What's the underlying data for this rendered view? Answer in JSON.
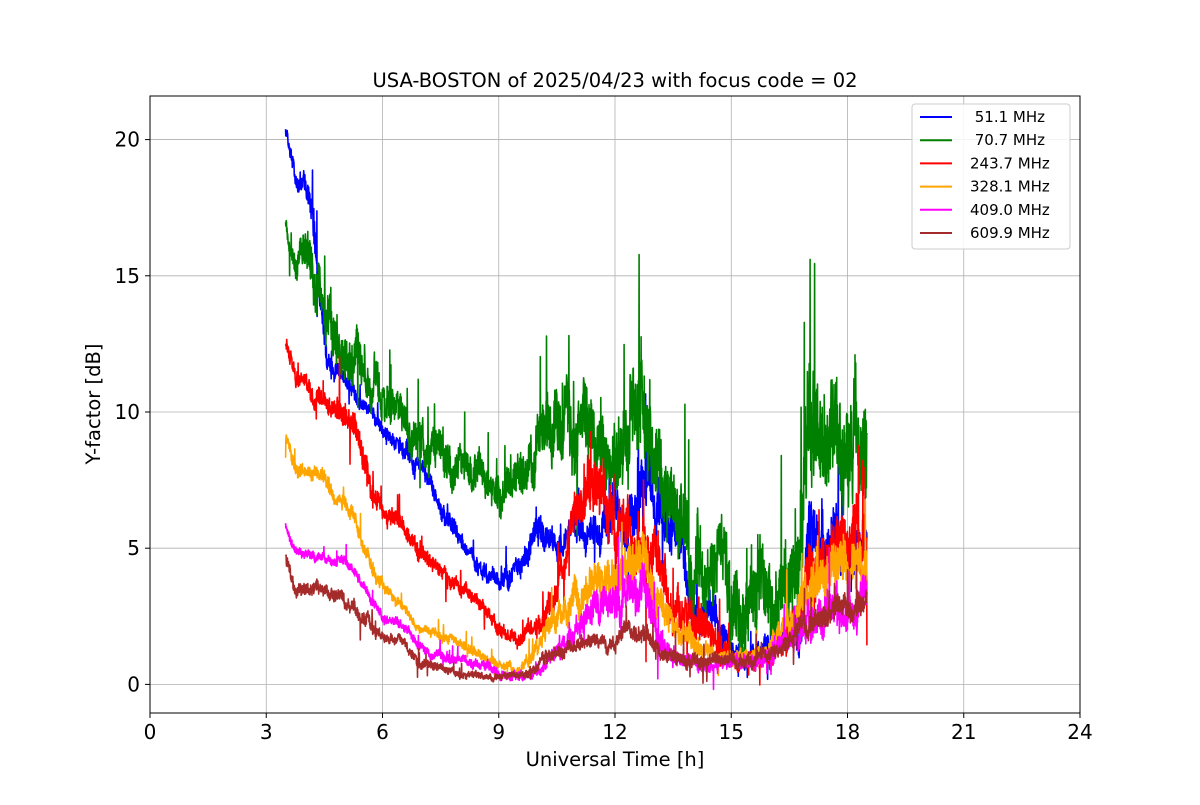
{
  "chart_data": {
    "type": "line",
    "title": "USA-BOSTON of 2025/04/23 with focus code = 02",
    "xlabel": "Universal Time [h]",
    "ylabel": "Y-factor [dB]",
    "xlim": [
      0,
      24
    ],
    "ylim": [
      -1.05,
      21.6
    ],
    "xticks": [
      0,
      3,
      6,
      9,
      12,
      15,
      18,
      21,
      24
    ],
    "yticks": [
      0,
      5,
      10,
      15,
      20
    ],
    "grid": true,
    "legend_position": "top-right",
    "series": [
      {
        "name": " 51.1 MHz",
        "color": "#0000ff",
        "x": [
          3.5,
          3.75,
          4.0,
          4.25,
          4.5,
          4.75,
          5.0,
          5.25,
          5.5,
          5.75,
          6.0,
          6.25,
          6.5,
          6.75,
          7.0,
          7.25,
          7.5,
          7.75,
          8.0,
          8.25,
          8.5,
          8.75,
          9.0,
          9.25,
          9.5,
          9.75,
          10.0,
          10.25,
          10.5,
          10.75,
          11.0,
          11.25,
          11.5,
          11.75,
          12.0,
          12.25,
          12.5,
          12.75,
          13.0,
          13.25,
          13.5,
          13.75,
          14.0,
          14.25,
          14.5,
          14.75,
          15.0,
          15.25,
          15.5,
          15.75,
          16.0,
          16.25,
          16.5,
          16.75,
          17.0,
          17.25,
          17.5,
          17.75,
          18.0,
          18.25,
          18.5
        ],
        "y": [
          20.3,
          18.6,
          18.3,
          16.5,
          12.5,
          11.5,
          11.2,
          10.8,
          10.3,
          9.9,
          9.3,
          9.0,
          8.8,
          8.2,
          8.0,
          7.4,
          6.3,
          5.9,
          5.4,
          4.8,
          4.4,
          4.0,
          3.9,
          4.0,
          4.2,
          4.8,
          5.5,
          5.2,
          5.0,
          5.4,
          5.8,
          5.5,
          5.8,
          6.0,
          6.2,
          6.0,
          6.3,
          7.8,
          7.5,
          5.8,
          5.2,
          5.0,
          2.8,
          2.5,
          2.3,
          2.0,
          1.2,
          1.1,
          1.0,
          1.2,
          1.3,
          1.5,
          1.8,
          1.4,
          5.5,
          5.2,
          5.4,
          5.5,
          5.0,
          4.8,
          5.0
        ],
        "amp": [
          0.2,
          0.4,
          0.5,
          0.8,
          0.7,
          0.5,
          0.4,
          0.4,
          0.3,
          0.3,
          0.3,
          0.3,
          0.4,
          0.4,
          0.4,
          0.4,
          0.4,
          0.4,
          0.4,
          0.3,
          0.4,
          0.4,
          0.4,
          0.5,
          0.5,
          0.6,
          0.8,
          0.6,
          0.6,
          0.6,
          0.6,
          0.6,
          0.8,
          1.0,
          1.2,
          1.0,
          1.3,
          1.4,
          1.4,
          1.2,
          1.0,
          1.0,
          0.9,
          0.8,
          0.8,
          0.7,
          0.5,
          0.4,
          0.4,
          0.4,
          0.5,
          0.6,
          0.6,
          0.6,
          1.3,
          1.2,
          1.2,
          1.2,
          1.1,
          1.0,
          1.0
        ]
      },
      {
        "name": " 70.7 MHz",
        "color": "#008000",
        "x": [
          3.5,
          3.75,
          4.0,
          4.25,
          4.5,
          4.75,
          5.0,
          5.25,
          5.5,
          5.75,
          6.0,
          6.25,
          6.5,
          6.75,
          7.0,
          7.25,
          7.5,
          7.75,
          8.0,
          8.25,
          8.5,
          8.75,
          9.0,
          9.25,
          9.5,
          9.75,
          10.0,
          10.25,
          10.5,
          10.75,
          11.0,
          11.25,
          11.5,
          11.75,
          12.0,
          12.25,
          12.5,
          12.75,
          13.0,
          13.25,
          13.5,
          13.75,
          14.0,
          14.25,
          14.5,
          14.75,
          15.0,
          15.25,
          15.5,
          15.75,
          16.0,
          16.25,
          16.5,
          16.75,
          17.0,
          17.25,
          17.5,
          17.75,
          18.0,
          18.25,
          18.5
        ],
        "y": [
          16.8,
          15.6,
          16.2,
          14.2,
          13.2,
          12.8,
          12.3,
          12.0,
          11.4,
          11.0,
          10.5,
          10.2,
          9.8,
          9.2,
          8.8,
          8.6,
          8.5,
          8.4,
          8.2,
          7.8,
          7.6,
          7.4,
          7.0,
          6.8,
          7.0,
          7.8,
          8.2,
          9.0,
          9.5,
          9.6,
          9.0,
          9.6,
          9.2,
          8.2,
          8.2,
          8.6,
          10.5,
          10.0,
          7.5,
          6.8,
          6.5,
          6.8,
          4.0,
          4.2,
          4.5,
          5.0,
          3.0,
          2.2,
          3.2,
          4.0,
          3.0,
          3.5,
          4.0,
          5.0,
          9.5,
          8.8,
          9.0,
          9.2,
          8.8,
          8.5,
          8.5
        ],
        "amp": [
          0.3,
          0.6,
          0.9,
          1.2,
          1.2,
          1.2,
          1.0,
          1.0,
          1.0,
          0.9,
          0.9,
          0.8,
          0.9,
          0.9,
          0.9,
          0.9,
          0.9,
          0.9,
          0.9,
          0.8,
          0.9,
          0.8,
          0.8,
          0.8,
          0.9,
          1.1,
          1.3,
          1.5,
          1.6,
          1.6,
          1.5,
          1.5,
          1.4,
          1.6,
          1.8,
          1.8,
          2.2,
          2.0,
          2.0,
          1.8,
          1.8,
          1.8,
          1.8,
          1.7,
          1.7,
          1.6,
          1.8,
          1.6,
          1.8,
          1.8,
          1.8,
          1.8,
          2.0,
          2.2,
          2.6,
          2.6,
          2.4,
          2.4,
          2.3,
          2.3,
          2.3
        ]
      },
      {
        "name": "243.7 MHz",
        "color": "#ff0000",
        "x": [
          3.5,
          3.75,
          4.0,
          4.25,
          4.5,
          4.75,
          5.0,
          5.25,
          5.5,
          5.75,
          6.0,
          6.25,
          6.5,
          6.75,
          7.0,
          7.25,
          7.5,
          7.75,
          8.0,
          8.25,
          8.5,
          8.75,
          9.0,
          9.25,
          9.5,
          9.75,
          10.0,
          10.25,
          10.5,
          10.75,
          11.0,
          11.25,
          11.5,
          11.75,
          12.0,
          12.25,
          12.5,
          12.75,
          13.0,
          13.25,
          13.5,
          13.75,
          14.0,
          14.25,
          14.5,
          14.75,
          15.0,
          15.25,
          15.5,
          15.75,
          16.0,
          16.25,
          16.5,
          16.75,
          17.0,
          17.25,
          17.5,
          17.75,
          18.0,
          18.25,
          18.5
        ],
        "y": [
          12.6,
          11.2,
          11.0,
          10.6,
          10.3,
          10.0,
          9.8,
          9.5,
          8.4,
          7.2,
          6.4,
          6.2,
          6.0,
          5.2,
          4.8,
          4.4,
          4.2,
          3.8,
          3.5,
          3.3,
          3.0,
          2.5,
          2.0,
          1.8,
          1.6,
          2.0,
          2.4,
          2.8,
          3.2,
          4.5,
          6.0,
          7.2,
          8.0,
          6.5,
          5.5,
          5.5,
          4.8,
          4.8,
          4.6,
          3.8,
          2.6,
          2.3,
          2.4,
          2.3,
          1.8,
          1.5,
          0.8,
          0.8,
          0.9,
          0.9,
          1.2,
          1.7,
          2.0,
          2.5,
          4.2,
          4.6,
          4.5,
          4.8,
          5.2,
          5.5,
          5.5
        ],
        "amp": [
          0.3,
          0.4,
          0.4,
          0.4,
          0.5,
          0.5,
          0.6,
          0.6,
          0.6,
          0.5,
          0.4,
          0.4,
          0.4,
          0.4,
          0.4,
          0.4,
          0.3,
          0.3,
          0.3,
          0.3,
          0.3,
          0.3,
          0.3,
          0.3,
          0.3,
          0.4,
          0.5,
          0.6,
          0.7,
          0.8,
          1.0,
          1.2,
          1.4,
          1.3,
          1.2,
          1.2,
          1.2,
          1.2,
          1.2,
          1.0,
          0.8,
          0.8,
          0.8,
          0.8,
          0.7,
          0.6,
          0.4,
          0.4,
          0.4,
          0.4,
          0.6,
          0.7,
          0.8,
          0.9,
          1.2,
          1.2,
          1.2,
          1.2,
          1.3,
          1.3,
          1.2
        ]
      },
      {
        "name": "328.1 MHz",
        "color": "#ffa500",
        "x": [
          3.5,
          3.75,
          4.0,
          4.25,
          4.5,
          4.75,
          5.0,
          5.25,
          5.5,
          5.75,
          6.0,
          6.25,
          6.5,
          6.75,
          7.0,
          7.25,
          7.5,
          7.75,
          8.0,
          8.25,
          8.5,
          8.75,
          9.0,
          9.25,
          9.5,
          9.75,
          10.0,
          10.25,
          10.5,
          10.75,
          11.0,
          11.25,
          11.5,
          11.75,
          12.0,
          12.25,
          12.5,
          12.75,
          13.0,
          13.25,
          13.5,
          13.75,
          14.0,
          14.25,
          14.5,
          14.75,
          15.0,
          15.25,
          15.5,
          15.75,
          16.0,
          16.25,
          16.5,
          16.75,
          17.0,
          17.25,
          17.5,
          17.75,
          18.0,
          18.25,
          18.5
        ],
        "y": [
          9.2,
          8.0,
          7.8,
          7.7,
          7.6,
          7.0,
          6.8,
          6.2,
          5.0,
          4.2,
          3.6,
          3.2,
          3.0,
          2.4,
          2.0,
          1.9,
          1.8,
          1.7,
          1.5,
          1.3,
          1.1,
          0.9,
          0.7,
          0.6,
          0.5,
          0.8,
          1.4,
          2.0,
          2.4,
          2.8,
          3.2,
          3.4,
          3.6,
          3.8,
          4.0,
          4.2,
          4.6,
          4.8,
          3.5,
          2.8,
          2.2,
          1.8,
          1.5,
          1.2,
          1.0,
          0.9,
          1.0,
          1.0,
          1.0,
          1.1,
          1.3,
          1.8,
          2.2,
          2.8,
          3.5,
          3.8,
          4.0,
          4.2,
          4.4,
          4.5,
          4.5
        ],
        "amp": [
          0.3,
          0.3,
          0.3,
          0.3,
          0.3,
          0.3,
          0.3,
          0.3,
          0.3,
          0.3,
          0.3,
          0.2,
          0.2,
          0.2,
          0.2,
          0.2,
          0.2,
          0.2,
          0.2,
          0.2,
          0.2,
          0.2,
          0.2,
          0.2,
          0.2,
          0.3,
          0.4,
          0.5,
          0.5,
          0.6,
          0.7,
          0.7,
          0.8,
          0.8,
          0.9,
          0.9,
          1.0,
          1.0,
          0.9,
          0.7,
          0.6,
          0.5,
          0.5,
          0.4,
          0.4,
          0.3,
          0.3,
          0.3,
          0.3,
          0.3,
          0.4,
          0.5,
          0.6,
          0.7,
          0.9,
          0.9,
          1.0,
          1.0,
          1.0,
          1.0,
          1.0
        ]
      },
      {
        "name": "409.0 MHz",
        "color": "#ff00ff",
        "x": [
          3.5,
          3.75,
          4.0,
          4.25,
          4.5,
          4.75,
          5.0,
          5.25,
          5.5,
          5.75,
          6.0,
          6.25,
          6.5,
          6.75,
          7.0,
          7.25,
          7.5,
          7.75,
          8.0,
          8.25,
          8.5,
          8.75,
          9.0,
          9.25,
          9.5,
          9.75,
          10.0,
          10.25,
          10.5,
          10.75,
          11.0,
          11.25,
          11.5,
          11.75,
          12.0,
          12.25,
          12.5,
          12.75,
          13.0,
          13.25,
          13.5,
          13.75,
          14.0,
          14.25,
          14.5,
          14.75,
          15.0,
          15.25,
          15.5,
          15.75,
          16.0,
          16.25,
          16.5,
          16.75,
          17.0,
          17.25,
          17.5,
          17.75,
          18.0,
          18.25,
          18.5
        ],
        "y": [
          5.8,
          4.9,
          4.8,
          4.7,
          4.6,
          4.6,
          4.5,
          4.2,
          3.6,
          3.0,
          2.5,
          2.3,
          2.2,
          1.7,
          1.4,
          1.1,
          1.0,
          0.9,
          0.8,
          0.8,
          0.7,
          0.6,
          0.5,
          0.4,
          0.3,
          0.3,
          0.6,
          0.9,
          1.2,
          1.6,
          2.0,
          2.5,
          3.0,
          2.8,
          3.0,
          3.2,
          3.5,
          3.6,
          2.0,
          1.4,
          1.0,
          0.8,
          0.8,
          0.7,
          0.6,
          0.7,
          0.8,
          0.8,
          0.8,
          0.9,
          1.0,
          1.4,
          1.8,
          2.0,
          2.4,
          2.6,
          2.7,
          2.8,
          2.8,
          2.8,
          2.9
        ],
        "amp": [
          0.2,
          0.2,
          0.2,
          0.2,
          0.2,
          0.2,
          0.2,
          0.2,
          0.2,
          0.2,
          0.2,
          0.2,
          0.2,
          0.2,
          0.2,
          0.2,
          0.2,
          0.2,
          0.2,
          0.2,
          0.2,
          0.2,
          0.2,
          0.2,
          0.2,
          0.2,
          0.3,
          0.3,
          0.4,
          0.4,
          0.5,
          0.6,
          0.7,
          0.7,
          0.8,
          0.8,
          0.9,
          0.9,
          0.7,
          0.5,
          0.4,
          0.3,
          0.3,
          0.3,
          0.3,
          0.3,
          0.3,
          0.3,
          0.3,
          0.3,
          0.3,
          0.4,
          0.5,
          0.6,
          0.8,
          0.8,
          0.8,
          0.8,
          0.8,
          0.8,
          0.8
        ]
      },
      {
        "name": "609.9 MHz",
        "color": "#a52a2a",
        "x": [
          3.5,
          3.75,
          4.0,
          4.25,
          4.5,
          4.75,
          5.0,
          5.25,
          5.5,
          5.75,
          6.0,
          6.25,
          6.5,
          6.75,
          7.0,
          7.25,
          7.5,
          7.75,
          8.0,
          8.25,
          8.5,
          8.75,
          9.0,
          9.25,
          9.5,
          9.75,
          10.0,
          10.25,
          10.5,
          10.75,
          11.0,
          11.25,
          11.5,
          11.75,
          12.0,
          12.25,
          12.5,
          12.75,
          13.0,
          13.25,
          13.5,
          13.75,
          14.0,
          14.25,
          14.5,
          14.75,
          15.0,
          15.25,
          15.5,
          15.75,
          16.0,
          16.25,
          16.5,
          16.75,
          17.0,
          17.25,
          17.5,
          17.75,
          18.0,
          18.25,
          18.5
        ],
        "y": [
          4.6,
          3.4,
          3.6,
          3.6,
          3.5,
          3.3,
          3.1,
          2.9,
          2.5,
          2.0,
          1.8,
          1.7,
          1.6,
          1.1,
          0.8,
          0.7,
          0.6,
          0.5,
          0.4,
          0.35,
          0.35,
          0.3,
          0.3,
          0.3,
          0.3,
          0.4,
          0.7,
          1.0,
          1.2,
          1.3,
          1.5,
          1.5,
          1.7,
          1.5,
          1.5,
          2.2,
          2.0,
          1.8,
          1.5,
          1.0,
          0.9,
          0.8,
          0.8,
          0.8,
          0.9,
          0.9,
          0.8,
          0.8,
          0.9,
          1.0,
          1.0,
          1.3,
          1.8,
          2.0,
          2.2,
          2.4,
          2.6,
          2.8,
          2.8,
          2.9,
          3.0
        ],
        "amp": [
          0.3,
          0.3,
          0.3,
          0.3,
          0.3,
          0.3,
          0.3,
          0.3,
          0.3,
          0.3,
          0.2,
          0.2,
          0.2,
          0.2,
          0.2,
          0.2,
          0.15,
          0.15,
          0.15,
          0.15,
          0.15,
          0.15,
          0.15,
          0.15,
          0.15,
          0.2,
          0.2,
          0.3,
          0.3,
          0.3,
          0.3,
          0.3,
          0.3,
          0.3,
          0.3,
          0.4,
          0.4,
          0.4,
          0.3,
          0.3,
          0.3,
          0.3,
          0.3,
          0.3,
          0.3,
          0.3,
          0.3,
          0.3,
          0.3,
          0.3,
          0.3,
          0.3,
          0.4,
          0.4,
          0.5,
          0.5,
          0.5,
          0.5,
          0.5,
          0.5,
          0.5
        ]
      }
    ]
  }
}
